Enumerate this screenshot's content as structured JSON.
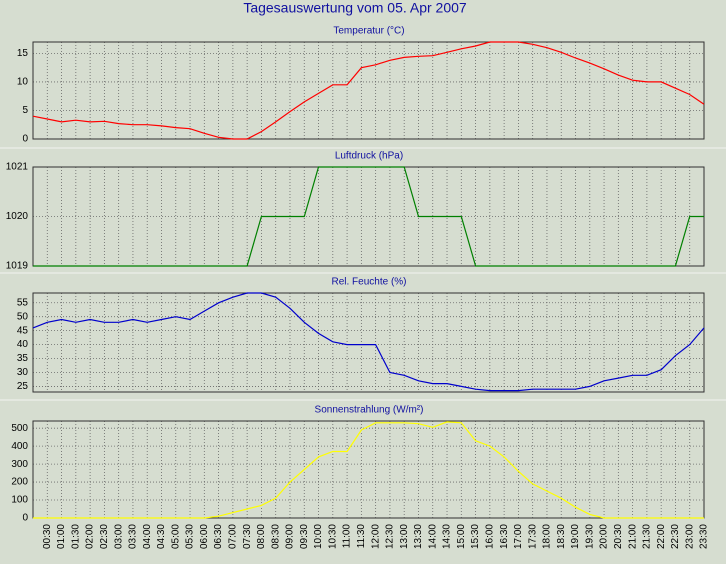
{
  "title": "Tagesauswertung vom 05. Apr 2007",
  "chart_data": [
    {
      "type": "line",
      "title": "Temperatur (°C)",
      "ylim": [
        0,
        17
      ],
      "yticks": [
        0,
        5,
        10,
        15
      ],
      "grid": true,
      "series": [
        {
          "name": "Temperatur",
          "color": "#ff0000",
          "values": [
            4.0,
            3.5,
            3.0,
            3.3,
            3.0,
            3.1,
            2.7,
            2.5,
            2.5,
            2.3,
            2.0,
            1.8,
            1.0,
            0.3,
            0,
            0,
            1.3,
            3.0,
            4.8,
            6.5,
            8.0,
            9.5,
            9.5,
            12.5,
            13.0,
            13.8,
            14.3,
            14.5,
            14.6,
            15.2,
            15.8,
            16.3,
            17.0,
            17.0,
            17.0,
            16.6,
            16.0,
            15.2,
            14.2,
            13.3,
            12.3,
            11.2,
            10.3,
            10.0,
            10.0,
            8.9,
            7.8,
            6.1
          ]
        }
      ]
    },
    {
      "type": "line",
      "title": "Luftdruck (hPa)",
      "ylim": [
        1019,
        1021
      ],
      "yticks": [
        1019,
        1020,
        1021
      ],
      "grid": true,
      "series": [
        {
          "name": "Luftdruck",
          "color": "#008000",
          "values": [
            1019,
            1019,
            1019,
            1019,
            1019,
            1019,
            1019,
            1019,
            1019,
            1019,
            1019,
            1019,
            1019,
            1019,
            1019,
            1019,
            1020,
            1020,
            1020,
            1020,
            1021,
            1021,
            1021,
            1021,
            1021,
            1021,
            1021,
            1020,
            1020,
            1020,
            1020,
            1019,
            1019,
            1019,
            1019,
            1019,
            1019,
            1019,
            1019,
            1019,
            1019,
            1019,
            1019,
            1019,
            1019,
            1019,
            1020,
            1020
          ]
        }
      ]
    },
    {
      "type": "line",
      "title": "Rel. Feuchte (%)",
      "ylim": [
        23,
        58.5
      ],
      "yticks": [
        25,
        30,
        35,
        40,
        45,
        50,
        55
      ],
      "grid": true,
      "series": [
        {
          "name": "Rel. Feuchte",
          "color": "#0000cc",
          "values": [
            46,
            48,
            49,
            48,
            49,
            48,
            48,
            49,
            48,
            49,
            50,
            49,
            52,
            55,
            57,
            58.5,
            58.5,
            57,
            53,
            48,
            44,
            41,
            40,
            40,
            40,
            30,
            29,
            27,
            26,
            26,
            25,
            24,
            23.5,
            23.5,
            23.5,
            24,
            24,
            24,
            24,
            25,
            27,
            28,
            29,
            29,
            31,
            36,
            40,
            46
          ]
        }
      ]
    },
    {
      "type": "line",
      "title": "Sonnenstrahlung (W/m²)",
      "ylim": [
        0,
        540
      ],
      "yticks": [
        0,
        100,
        200,
        300,
        400,
        500
      ],
      "grid": true,
      "categories": [
        null,
        "00:30",
        "01:00",
        "01:30",
        "02:00",
        "02:30",
        "03:00",
        "03:30",
        "04:00",
        "04:30",
        "05:00",
        "05:30",
        "06:00",
        "06:30",
        "07:00",
        "07:30",
        "08:00",
        "08:30",
        "09:00",
        "09:30",
        "10:00",
        "10:30",
        "11:00",
        "11:30",
        "12:00",
        "12:30",
        "13:00",
        "13:30",
        "14:00",
        "14:30",
        "15:00",
        "15:30",
        "16:00",
        "16:30",
        "17:00",
        "17:30",
        "18:00",
        "18:30",
        "19:00",
        "19:30",
        "20:00",
        "20:30",
        "21:00",
        "21:30",
        "22:00",
        "22:30",
        "23:00",
        "23:30"
      ],
      "series": [
        {
          "name": "Sonnenstrahlung",
          "color": "#ffff00",
          "values": [
            0,
            0,
            0,
            0,
            0,
            0,
            0,
            0,
            0,
            0,
            0,
            0,
            0,
            10,
            30,
            50,
            70,
            110,
            200,
            270,
            340,
            370,
            370,
            490,
            530,
            530,
            530,
            525,
            505,
            535,
            530,
            430,
            400,
            340,
            260,
            190,
            150,
            110,
            60,
            20,
            0,
            0,
            0,
            0,
            0,
            0,
            0,
            0
          ]
        }
      ]
    }
  ]
}
